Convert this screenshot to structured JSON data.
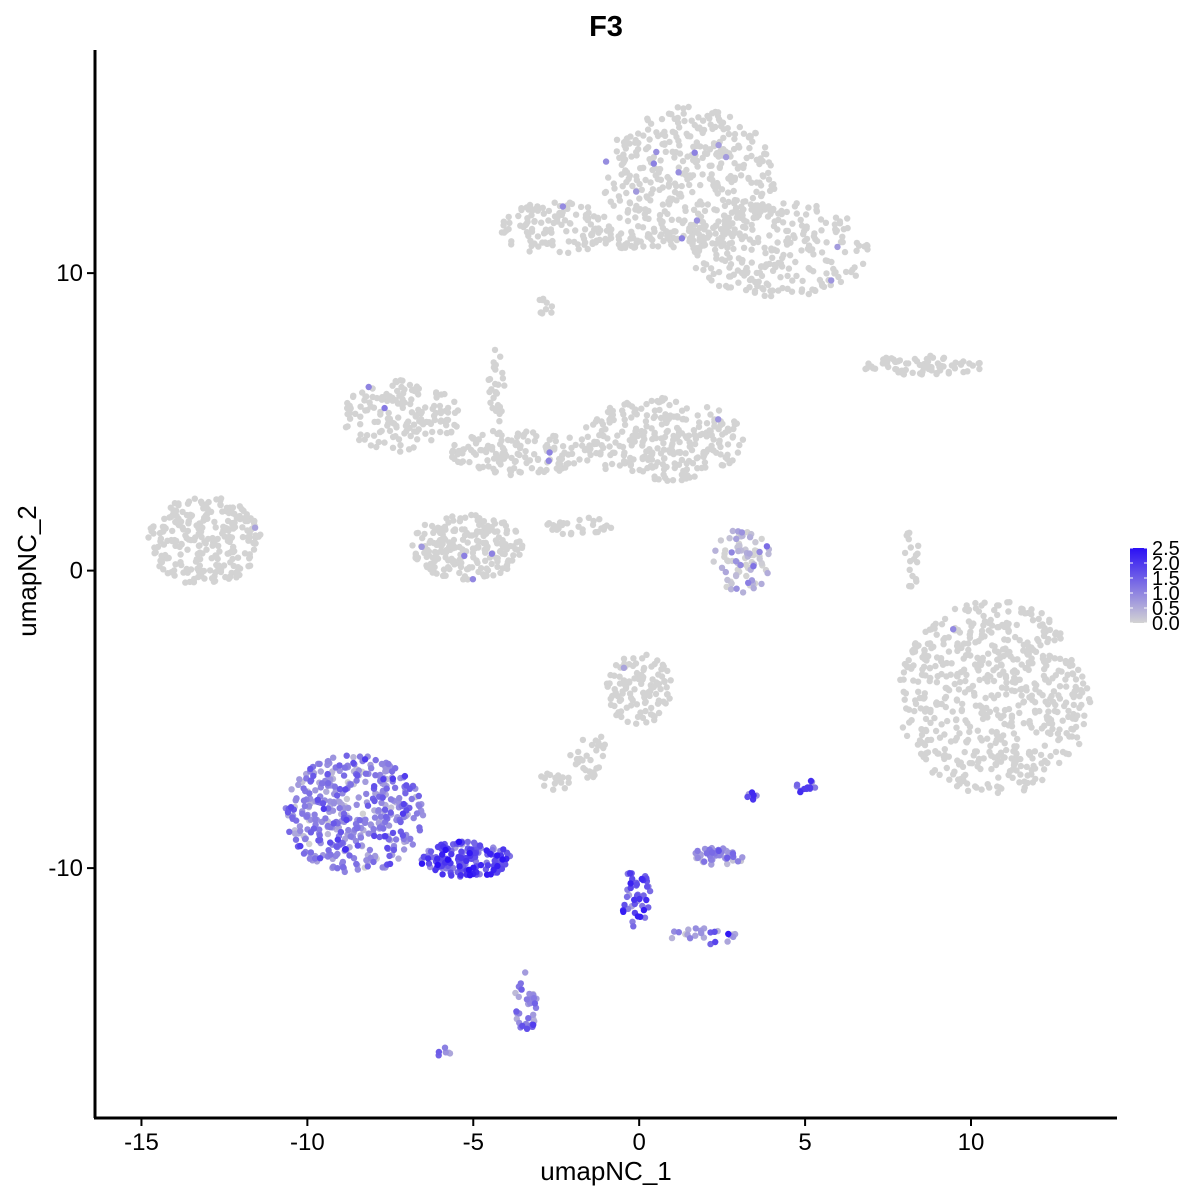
{
  "chart_data": {
    "type": "scatter",
    "title": "F3",
    "xlabel": "umapNC_1",
    "ylabel": "umapNC_2",
    "xlim": [
      -16.4,
      14.4
    ],
    "ylim": [
      -18.4,
      17.5
    ],
    "xticks": [
      -15,
      -10,
      -5,
      0,
      5,
      10
    ],
    "yticks": [
      -10,
      0,
      10
    ],
    "xtick_labels": [
      "-15",
      "-10",
      "-5",
      "0",
      "5",
      "10"
    ],
    "ytick_labels": [
      "-10",
      "0",
      "10"
    ],
    "grid": false,
    "colorscale": {
      "low": "#d3d3d3",
      "high": "#2b10f5",
      "range": [
        0,
        2.5
      ],
      "ticks": [
        "0.0",
        "0.5",
        "1.0",
        "1.5",
        "2.0",
        "2.5"
      ],
      "legend_placement": "right"
    },
    "clusters": [
      {
        "id": "top-right-large",
        "cx": 1.5,
        "cy": 13.2,
        "rx": 2.6,
        "ry": 2.4,
        "n": 420,
        "expr": 0.0
      },
      {
        "id": "top-right-arm",
        "cx": 4.2,
        "cy": 10.8,
        "rx": 2.8,
        "ry": 1.6,
        "n": 260,
        "expr": 0.0
      },
      {
        "id": "top-left-small",
        "cx": -2.5,
        "cy": 11.5,
        "rx": 1.7,
        "ry": 0.9,
        "n": 120,
        "expr": 0.0
      },
      {
        "id": "top-bridge",
        "cx": -0.3,
        "cy": 11.1,
        "rx": 1.5,
        "ry": 0.3,
        "n": 40,
        "expr": 0.0
      },
      {
        "id": "top-dot",
        "cx": -2.8,
        "cy": 8.9,
        "rx": 0.3,
        "ry": 0.3,
        "n": 10,
        "expr": 0.0
      },
      {
        "id": "right-stripe",
        "cx": 8.5,
        "cy": 6.9,
        "rx": 1.9,
        "ry": 0.35,
        "n": 70,
        "expr": 0.0
      },
      {
        "id": "center-left-cluster",
        "cx": -7.2,
        "cy": 5.2,
        "rx": 1.8,
        "ry": 1.2,
        "n": 160,
        "expr": 0.0
      },
      {
        "id": "center-right-cluster",
        "cx": 0.7,
        "cy": 4.4,
        "rx": 2.5,
        "ry": 1.4,
        "n": 280,
        "expr": 0.0
      },
      {
        "id": "center-bridge",
        "cx": -3.5,
        "cy": 4.0,
        "rx": 2.2,
        "ry": 0.8,
        "n": 140,
        "expr": 0.0
      },
      {
        "id": "center-bottom-blob",
        "cx": -5.2,
        "cy": 0.8,
        "rx": 1.7,
        "ry": 1.1,
        "n": 220,
        "expr": 0.0
      },
      {
        "id": "center-spike",
        "cx": -4.3,
        "cy": 6.2,
        "rx": 0.25,
        "ry": 1.3,
        "n": 30,
        "expr": 0.0
      },
      {
        "id": "center-tail",
        "cx": -1.8,
        "cy": 1.5,
        "rx": 1.1,
        "ry": 0.3,
        "n": 30,
        "expr": 0.0
      },
      {
        "id": "left-cluster",
        "cx": -13.1,
        "cy": 1.0,
        "rx": 1.7,
        "ry": 1.5,
        "n": 260,
        "expr": 0.0
      },
      {
        "id": "small-mid-cluster",
        "cx": 3.1,
        "cy": 0.3,
        "rx": 0.9,
        "ry": 1.1,
        "n": 80,
        "expr": 0.2
      },
      {
        "id": "right-thin",
        "cx": 8.2,
        "cy": 0.4,
        "rx": 0.25,
        "ry": 1.0,
        "n": 20,
        "expr": 0.0
      },
      {
        "id": "right-large",
        "cx": 10.7,
        "cy": -4.3,
        "rx": 2.9,
        "ry": 3.3,
        "n": 620,
        "expr": 0.0
      },
      {
        "id": "mid-cluster",
        "cx": 0.0,
        "cy": -4.0,
        "rx": 1.0,
        "ry": 1.2,
        "n": 110,
        "expr": 0.0
      },
      {
        "id": "mid-stem",
        "cx": -1.5,
        "cy": -6.2,
        "rx": 0.6,
        "ry": 0.8,
        "n": 30,
        "expr": 0.0
      },
      {
        "id": "mid-small",
        "cx": -2.6,
        "cy": -7.1,
        "rx": 0.6,
        "ry": 0.3,
        "n": 15,
        "expr": 0.0
      },
      {
        "id": "lower-left-expressing",
        "cx": -8.6,
        "cy": -8.2,
        "rx": 2.1,
        "ry": 2.0,
        "n": 420,
        "expr": 1.0
      },
      {
        "id": "lower-left-arm",
        "cx": -5.2,
        "cy": -9.7,
        "rx": 1.4,
        "ry": 0.6,
        "n": 150,
        "expr": 1.7
      },
      {
        "id": "lower-tail",
        "cx": -3.4,
        "cy": -14.5,
        "rx": 0.35,
        "ry": 1.0,
        "n": 35,
        "expr": 1.0
      },
      {
        "id": "lower-dot",
        "cx": -5.9,
        "cy": -16.2,
        "rx": 0.2,
        "ry": 0.2,
        "n": 6,
        "expr": 1.0
      },
      {
        "id": "v-shape-left",
        "cx": -0.1,
        "cy": -11.0,
        "rx": 0.45,
        "ry": 1.0,
        "n": 45,
        "expr": 1.6
      },
      {
        "id": "v-shape-right",
        "cx": 1.9,
        "cy": -12.3,
        "rx": 1.1,
        "ry": 0.3,
        "n": 25,
        "expr": 0.8
      },
      {
        "id": "small-right-cluster",
        "cx": 2.4,
        "cy": -9.6,
        "rx": 0.8,
        "ry": 0.3,
        "n": 45,
        "expr": 0.8
      },
      {
        "id": "small-dot-a",
        "cx": 3.4,
        "cy": -7.6,
        "rx": 0.15,
        "ry": 0.15,
        "n": 6,
        "expr": 2.0
      },
      {
        "id": "small-dot-b",
        "cx": 5.0,
        "cy": -7.3,
        "rx": 0.3,
        "ry": 0.3,
        "n": 12,
        "expr": 1.6
      }
    ]
  }
}
